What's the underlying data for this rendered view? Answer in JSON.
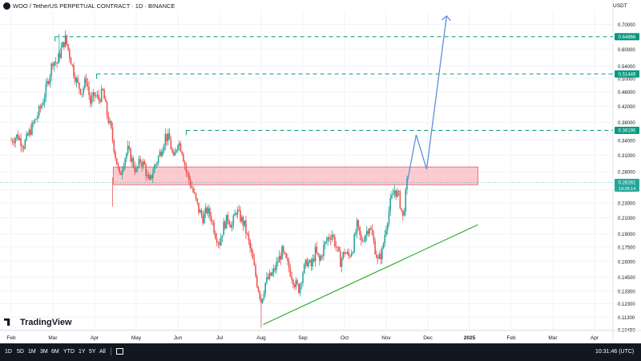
{
  "header": {
    "title": "WOO / TetherUS PERPETUAL CONTRACT · 1D · BINANCE",
    "currency": "USDT"
  },
  "branding": {
    "logo_text": "TradingView"
  },
  "toolbar": {
    "timeframes": [
      "1D",
      "5D",
      "1M",
      "3M",
      "6M",
      "YTD",
      "1Y",
      "5Y",
      "All"
    ],
    "clock": "10:31:46 (UTC)"
  },
  "chart_data": {
    "type": "candlestick",
    "y_scale": "log",
    "ylim": [
      0.104,
      0.76
    ],
    "y_ticks": [
      "0.70000",
      "0.60000",
      "0.54000",
      "0.50000",
      "0.46000",
      "0.42000",
      "0.38000",
      "0.34000",
      "0.31000",
      "0.28000",
      "0.25000",
      "0.23000",
      "0.21000",
      "0.19000",
      "0.17500",
      "0.16000",
      "0.14500",
      "0.13300",
      "0.12300",
      "0.11300",
      "0.10450"
    ],
    "x_ticks": [
      "Feb",
      "Mar",
      "Apr",
      "May",
      "Jun",
      "Jul",
      "Aug",
      "Sep",
      "Oct",
      "Nov",
      "Dec",
      "2025",
      "Feb",
      "Mar",
      "Apr"
    ],
    "colors": {
      "up": "#26a69a",
      "down": "#ef5350",
      "grid": "#f0f3fa",
      "resistance": "#089981",
      "support_line": "#22ab22",
      "projection": "#5b8fe0",
      "zone": "#f7a1a9"
    },
    "price_tags": [
      {
        "label": "0.64866",
        "value": 0.64866,
        "color": "#089981"
      },
      {
        "label": "0.51449",
        "value": 0.51449,
        "color": "#089981"
      },
      {
        "label": "0.36195",
        "value": 0.36195,
        "color": "#089981"
      },
      {
        "label": "0.26161",
        "value": 0.26161,
        "color": "#26a69a",
        "sublabel": "13:28:14"
      }
    ],
    "resistance_levels": [
      {
        "value": 0.64866,
        "from_month": 1.05
      },
      {
        "value": 0.51449,
        "from_month": 2.05
      },
      {
        "value": 0.36195,
        "from_month": 4.2
      }
    ],
    "zone": {
      "low": 0.258,
      "high": 0.288,
      "from_month": 2.45,
      "to_month": 11.2
    },
    "support_trendline": [
      [
        6.05,
        0.108
      ],
      [
        11.2,
        0.201
      ]
    ],
    "projection_path": [
      [
        9.5,
        0.26
      ],
      [
        9.72,
        0.352
      ],
      [
        9.97,
        0.284
      ],
      [
        10.45,
        0.738
      ]
    ],
    "price_path": [
      [
        0.0,
        0.34
      ],
      [
        0.15,
        0.35
      ],
      [
        0.3,
        0.33
      ],
      [
        0.45,
        0.36
      ],
      [
        0.6,
        0.39
      ],
      [
        0.75,
        0.43
      ],
      [
        0.9,
        0.5
      ],
      [
        1.0,
        0.56
      ],
      [
        1.1,
        0.55
      ],
      [
        1.2,
        0.6
      ],
      [
        1.3,
        0.64
      ],
      [
        1.4,
        0.58
      ],
      [
        1.5,
        0.52
      ],
      [
        1.6,
        0.48
      ],
      [
        1.7,
        0.46
      ],
      [
        1.8,
        0.5
      ],
      [
        1.9,
        0.43
      ],
      [
        2.0,
        0.45
      ],
      [
        2.1,
        0.44
      ],
      [
        2.2,
        0.46
      ],
      [
        2.3,
        0.4
      ],
      [
        2.4,
        0.36
      ],
      [
        2.5,
        0.31
      ],
      [
        2.6,
        0.27
      ],
      [
        2.7,
        0.3
      ],
      [
        2.8,
        0.32
      ],
      [
        2.9,
        0.3
      ],
      [
        3.0,
        0.28
      ],
      [
        3.1,
        0.3
      ],
      [
        3.2,
        0.29
      ],
      [
        3.3,
        0.26
      ],
      [
        3.4,
        0.28
      ],
      [
        3.5,
        0.3
      ],
      [
        3.6,
        0.32
      ],
      [
        3.7,
        0.35
      ],
      [
        3.8,
        0.34
      ],
      [
        3.9,
        0.3
      ],
      [
        4.0,
        0.34
      ],
      [
        4.1,
        0.32
      ],
      [
        4.2,
        0.28
      ],
      [
        4.3,
        0.26
      ],
      [
        4.4,
        0.24
      ],
      [
        4.5,
        0.22
      ],
      [
        4.6,
        0.21
      ],
      [
        4.7,
        0.22
      ],
      [
        4.8,
        0.21
      ],
      [
        4.9,
        0.19
      ],
      [
        5.0,
        0.18
      ],
      [
        5.1,
        0.2
      ],
      [
        5.2,
        0.21
      ],
      [
        5.3,
        0.2
      ],
      [
        5.4,
        0.22
      ],
      [
        5.5,
        0.21
      ],
      [
        5.6,
        0.2
      ],
      [
        5.7,
        0.18
      ],
      [
        5.8,
        0.16
      ],
      [
        5.9,
        0.14
      ],
      [
        6.0,
        0.125
      ],
      [
        6.1,
        0.14
      ],
      [
        6.2,
        0.145
      ],
      [
        6.3,
        0.15
      ],
      [
        6.4,
        0.16
      ],
      [
        6.5,
        0.17
      ],
      [
        6.6,
        0.16
      ],
      [
        6.7,
        0.15
      ],
      [
        6.8,
        0.14
      ],
      [
        6.9,
        0.135
      ],
      [
        7.0,
        0.15
      ],
      [
        7.1,
        0.16
      ],
      [
        7.2,
        0.155
      ],
      [
        7.3,
        0.17
      ],
      [
        7.4,
        0.16
      ],
      [
        7.5,
        0.175
      ],
      [
        7.6,
        0.185
      ],
      [
        7.7,
        0.19
      ],
      [
        7.8,
        0.175
      ],
      [
        7.9,
        0.16
      ],
      [
        8.0,
        0.17
      ],
      [
        8.1,
        0.165
      ],
      [
        8.2,
        0.175
      ],
      [
        8.3,
        0.2
      ],
      [
        8.4,
        0.18
      ],
      [
        8.5,
        0.19
      ],
      [
        8.6,
        0.2
      ],
      [
        8.7,
        0.18
      ],
      [
        8.8,
        0.16
      ],
      [
        8.9,
        0.17
      ],
      [
        9.0,
        0.2
      ],
      [
        9.1,
        0.23
      ],
      [
        9.2,
        0.25
      ],
      [
        9.3,
        0.24
      ],
      [
        9.4,
        0.21
      ],
      [
        9.5,
        0.26
      ]
    ]
  }
}
